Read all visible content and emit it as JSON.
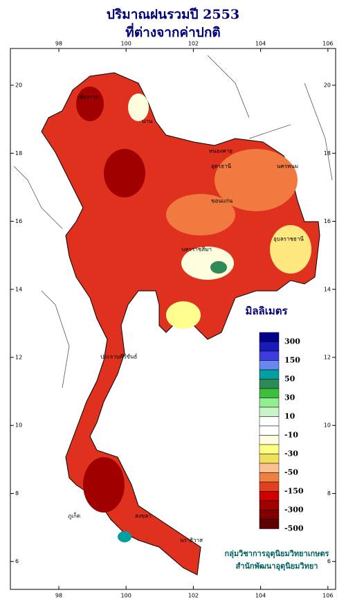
{
  "title": [
    "ปริมาณฝนรวมปี  2553",
    "ที่ต่างจากค่าปกติ"
  ],
  "map": {
    "lon_range": [
      96.56,
      106.23
    ],
    "lat_range": [
      21.08,
      5.18
    ],
    "lon_ticks": [
      98,
      100,
      102,
      104,
      106
    ],
    "lat_ticks": [
      20,
      18,
      16,
      14,
      12,
      10,
      8,
      6
    ],
    "places": [
      "เชียงราย",
      "น่าน",
      "หนองคาย",
      "อุดรธานี",
      "นครพนม",
      "ขอนแก่น",
      "นครราชสีมา",
      "อุบลราชธานี",
      "ประจวบคีรีขันธ์",
      "ภูเก็ต",
      "สงขลา",
      "นราธิวาส"
    ]
  },
  "legend": {
    "title": "มิลลิเมตร",
    "colors": [
      "#00008b",
      "#1a1ab8",
      "#3c3ce0",
      "#6688f0",
      "#00a0a0",
      "#2e8b57",
      "#3cbf3c",
      "#90ee90",
      "#c8f5c8",
      "#ffffff",
      "#ffffff",
      "#ffffe0",
      "#ffff80",
      "#f0e060",
      "#ffc090",
      "#f08040",
      "#e04020",
      "#d00000",
      "#a00000",
      "#800000",
      "#600000"
    ],
    "labels": [
      "300",
      "150",
      "50",
      "30",
      "10",
      "-10",
      "-30",
      "-50",
      "-150",
      "-300",
      "-500"
    ]
  },
  "credit": [
    "กลุ่มวิชาการอุตุนิยมวิทยาเกษตร",
    "สำนักพัฒนาอุตุนิยมวิทยา"
  ]
}
